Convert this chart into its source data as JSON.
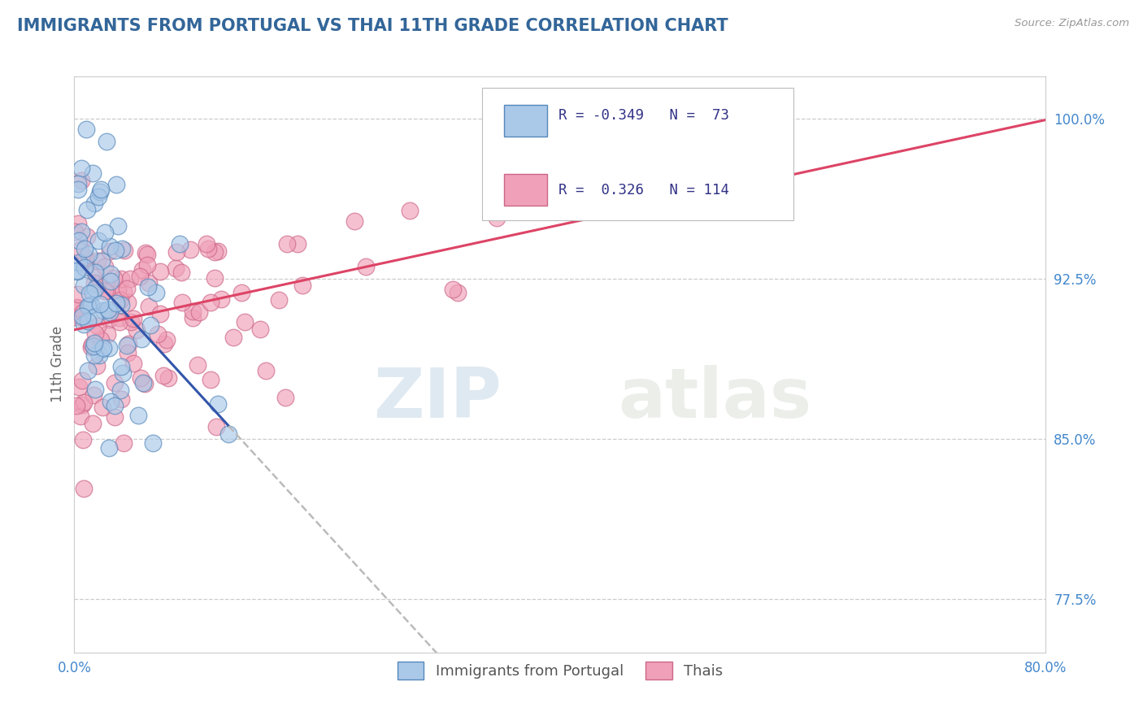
{
  "title": "IMMIGRANTS FROM PORTUGAL VS THAI 11TH GRADE CORRELATION CHART",
  "source_text": "Source: ZipAtlas.com",
  "ylabel": "11th Grade",
  "xlim": [
    0.0,
    80.0
  ],
  "ylim": [
    75.0,
    102.0
  ],
  "y_ticks": [
    77.5,
    85.0,
    92.5,
    100.0
  ],
  "grid_color": "#cccccc",
  "background_color": "#ffffff",
  "blue_color": "#aac8e8",
  "pink_color": "#f0a0b8",
  "blue_edge_color": "#5588bb",
  "pink_edge_color": "#cc6688",
  "blue_line_color": "#3355aa",
  "pink_line_color": "#dd4466",
  "dashed_line_color": "#bbbbbb",
  "R_blue": -0.349,
  "N_blue": 73,
  "R_pink": 0.326,
  "N_pink": 114,
  "legend_blue_label": "Immigrants from Portugal",
  "legend_pink_label": "Thais",
  "watermark_zip": "ZIP",
  "watermark_atlas": "atlas",
  "title_color": "#336699",
  "title_fontsize": 15,
  "axis_label_color": "#666666",
  "tick_label_color": "#4488cc",
  "blue_intercept": 93.5,
  "blue_slope": -0.72,
  "pink_intercept": 90.5,
  "pink_slope": 0.115
}
